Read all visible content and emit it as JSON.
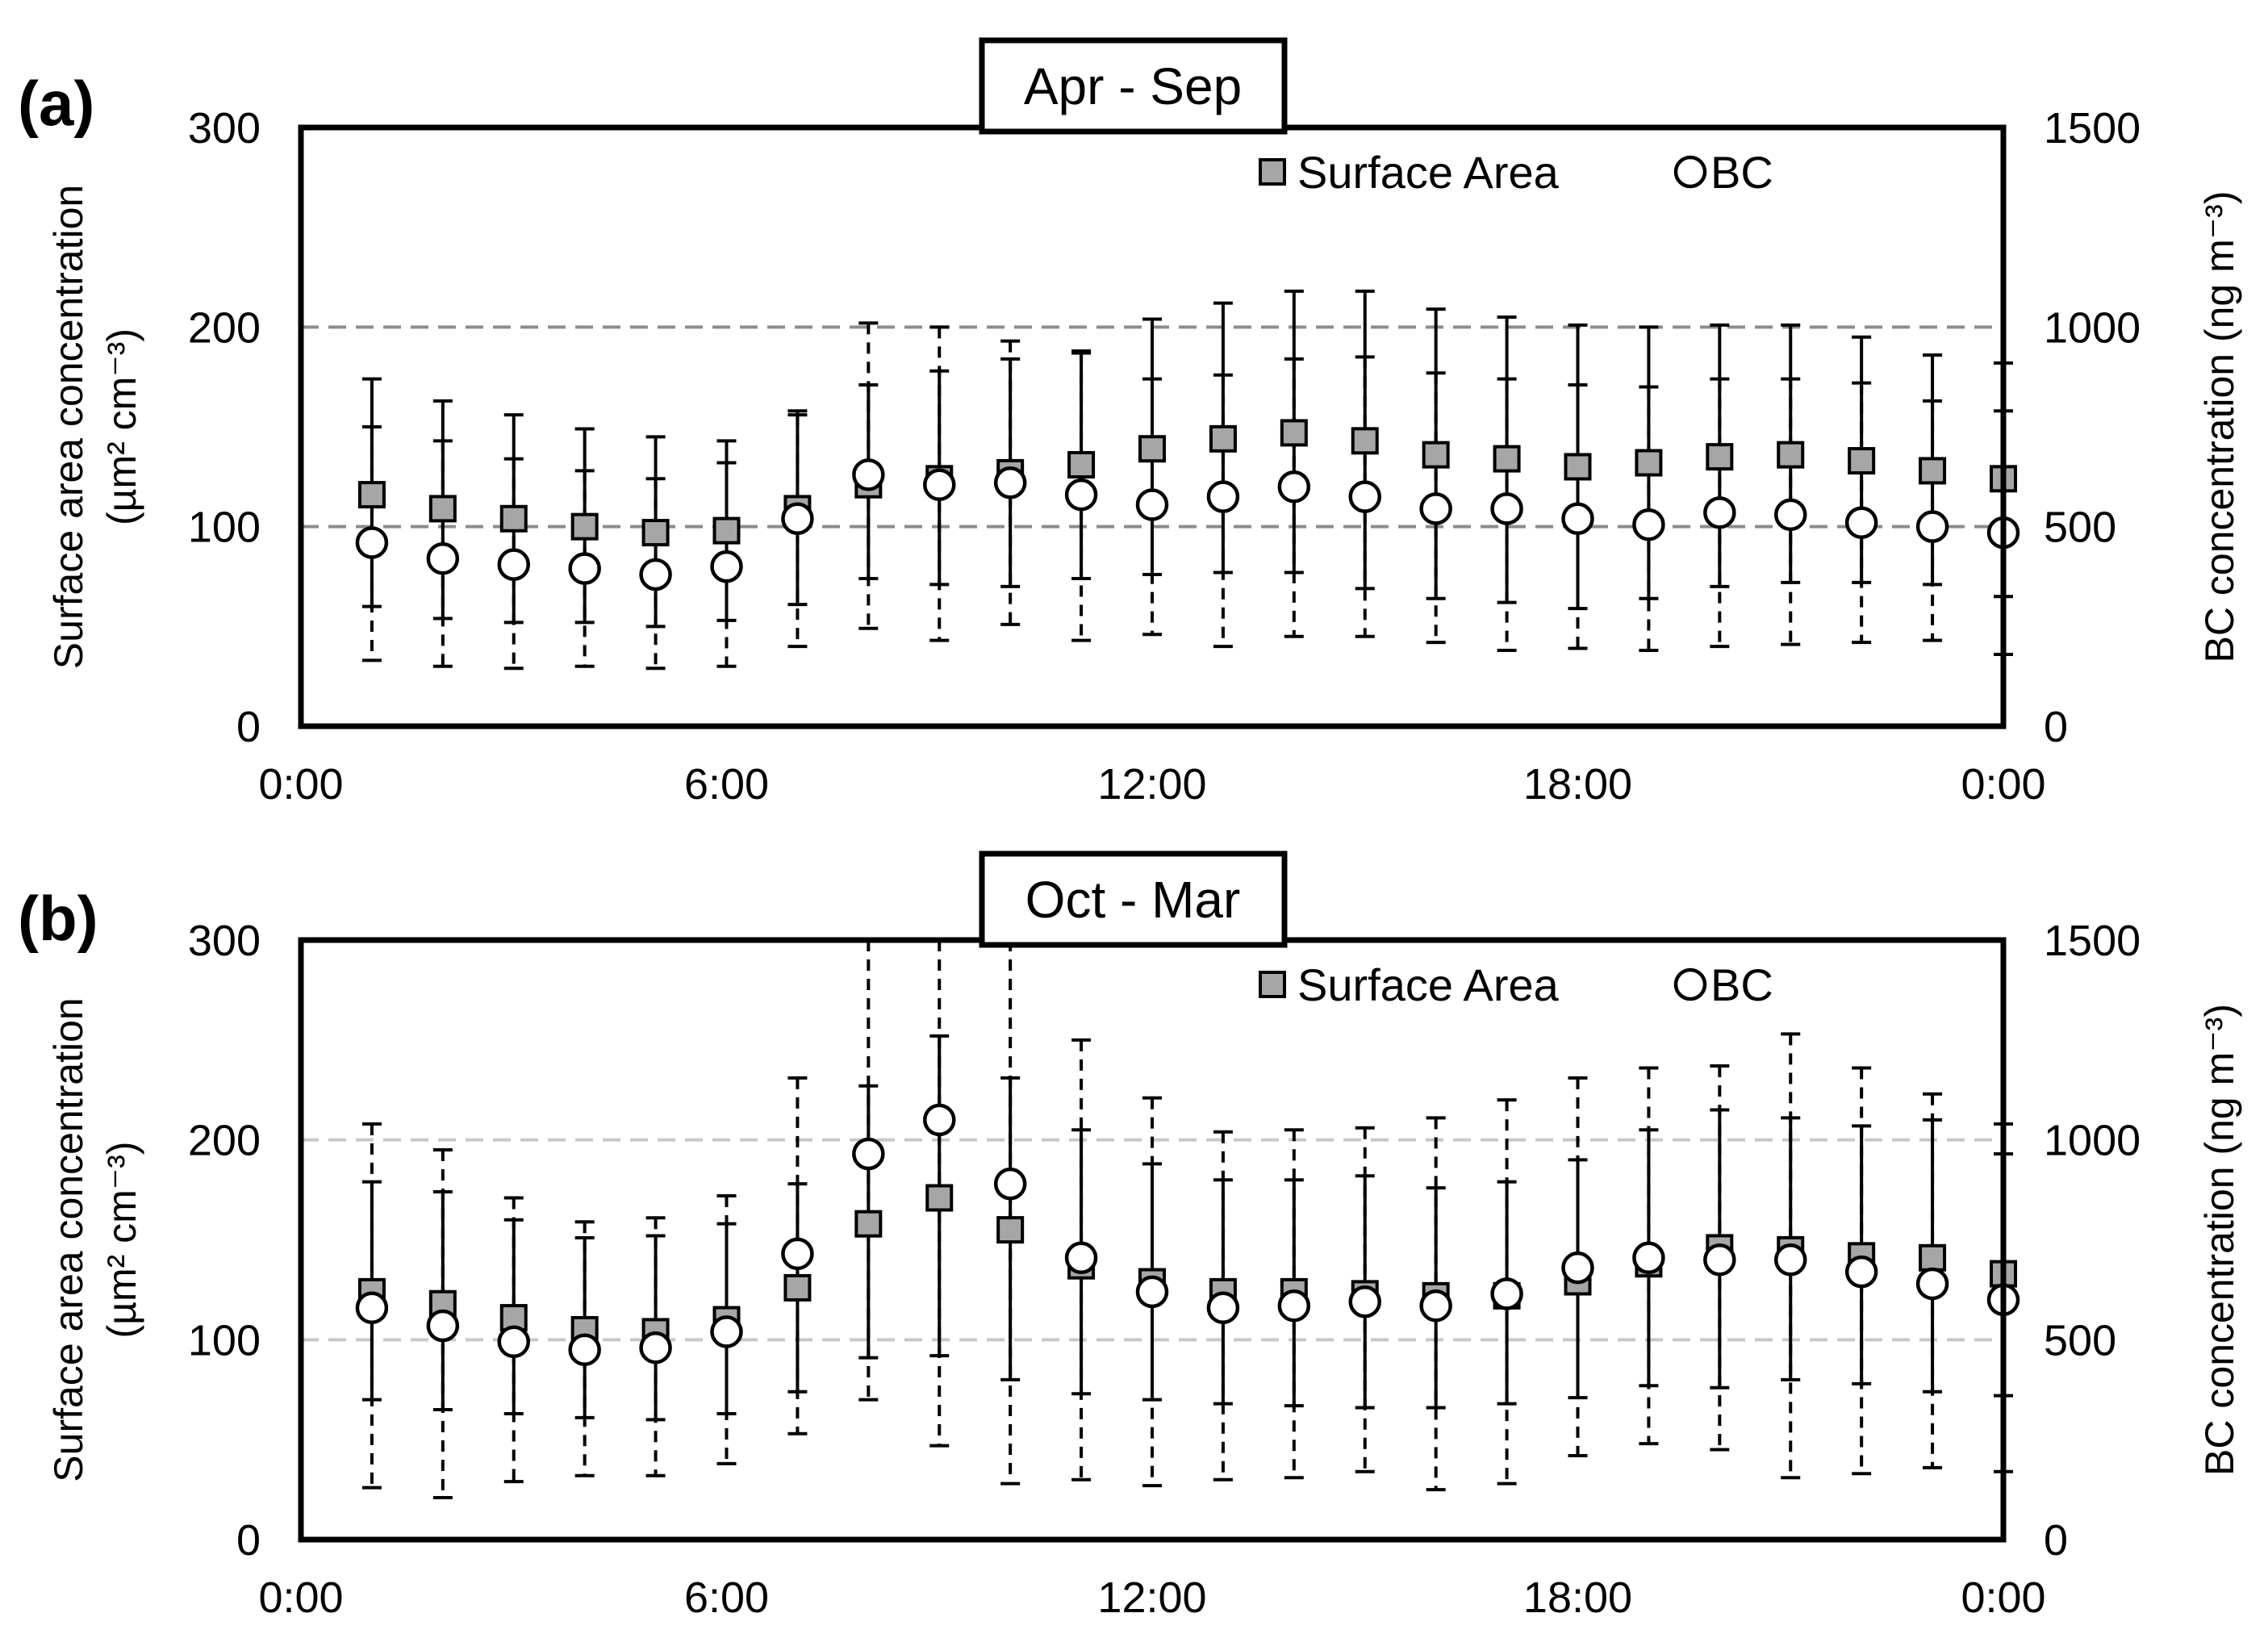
{
  "colors": {
    "axis": "#000000",
    "square_fill": "#a6a6a6",
    "circle_fill": "#ffffff",
    "grid_a": "#8c8c8c",
    "grid_b": "#c8c8c8"
  },
  "chart_data": [
    {
      "type": "scatter",
      "panel_label": "(a)",
      "title": "Apr - Sep",
      "ylabel_left_1": "Surface area concentration",
      "ylabel_left_2": "(µm² cm⁻³)",
      "ylabel_right": "BC concentration (ng m⁻³)",
      "ylim_left": [
        0,
        300
      ],
      "ylim_right": [
        0,
        1500
      ],
      "yticks_left": [
        "0",
        "100",
        "200",
        "300"
      ],
      "yticks_right": [
        "0",
        "500",
        "1000",
        "1500"
      ],
      "xlim": [
        0,
        24
      ],
      "xticks": [
        "0:00",
        "6:00",
        "12:00",
        "18:00",
        "0:00"
      ],
      "gridlines_left": [
        100,
        200
      ],
      "legend": {
        "placement": "top-right",
        "square": "Surface Area",
        "circle": "BC"
      },
      "hours": [
        1,
        2,
        3,
        4,
        5,
        6,
        7,
        8,
        9,
        10,
        11,
        12,
        13,
        14,
        15,
        16,
        17,
        18,
        19,
        20,
        21,
        22,
        23,
        24
      ],
      "series": [
        {
          "name": "Surface Area",
          "axis": "left",
          "values": [
            116,
            109,
            104,
            100,
            97,
            98,
            109,
            121,
            124,
            127,
            131,
            139,
            144,
            147,
            143,
            136,
            134,
            130,
            132,
            135,
            136,
            133,
            128,
            124
          ],
          "sd_lower": [
            60,
            54,
            52,
            52,
            50,
            53,
            61,
            74,
            71,
            70,
            74,
            76,
            77,
            77,
            69,
            64,
            62,
            59,
            64,
            70,
            72,
            72,
            71,
            65
          ],
          "sd_upper": [
            174,
            163,
            156,
            149,
            145,
            143,
            158,
            171,
            178,
            184,
            188,
            204,
            212,
            218,
            218,
            209,
            205,
            201,
            200,
            201,
            201,
            195,
            186,
            182
          ]
        },
        {
          "name": "BC",
          "axis": "right",
          "values": [
            460,
            420,
            405,
            395,
            380,
            400,
            520,
            630,
            605,
            610,
            580,
            555,
            575,
            600,
            575,
            545,
            545,
            520,
            505,
            535,
            530,
            510,
            500,
            485
          ],
          "sd_lower": [
            165,
            150,
            145,
            150,
            145,
            150,
            200,
            245,
            215,
            255,
            215,
            230,
            200,
            225,
            225,
            210,
            190,
            195,
            190,
            200,
            205,
            210,
            215,
            180
          ],
          "sd_upper": [
            750,
            715,
            670,
            640,
            620,
            660,
            780,
            1010,
            1000,
            965,
            935,
            870,
            880,
            920,
            925,
            885,
            870,
            855,
            850,
            870,
            870,
            860,
            815,
            790
          ]
        }
      ]
    },
    {
      "type": "scatter",
      "panel_label": "(b)",
      "title": "Oct - Mar",
      "ylabel_left_1": "Surface area concentration",
      "ylabel_left_2": "(µm² cm⁻³)",
      "ylabel_right": "BC concentration (ng m⁻³)",
      "ylim_left": [
        0,
        300
      ],
      "ylim_right": [
        0,
        1500
      ],
      "yticks_left": [
        "0",
        "100",
        "200",
        "300"
      ],
      "yticks_right": [
        "0",
        "500",
        "1000",
        "1500"
      ],
      "xlim": [
        0,
        24
      ],
      "xticks": [
        "0:00",
        "6:00",
        "12:00",
        "18:00",
        "0:00"
      ],
      "gridlines_left": [
        100,
        200
      ],
      "legend": {
        "placement": "top-right",
        "square": "Surface Area",
        "circle": "BC"
      },
      "hours": [
        1,
        2,
        3,
        4,
        5,
        6,
        7,
        8,
        9,
        10,
        11,
        12,
        13,
        14,
        15,
        16,
        17,
        18,
        19,
        20,
        21,
        22,
        23,
        24
      ],
      "series": [
        {
          "name": "Surface Area",
          "axis": "left",
          "values": [
            124,
            118,
            111,
            105,
            104,
            110,
            126,
            158,
            171,
            155,
            137,
            129,
            124,
            124,
            123,
            122,
            122,
            129,
            138,
            146,
            145,
            142,
            141,
            133
          ],
          "sd_lower": [
            70,
            65,
            63,
            61,
            60,
            63,
            74,
            91,
            92,
            80,
            73,
            70,
            68,
            67,
            66,
            66,
            68,
            71,
            77,
            76,
            80,
            78,
            74,
            72
          ],
          "sd_upper": [
            179,
            174,
            160,
            151,
            152,
            158,
            178,
            227,
            252,
            231,
            205,
            188,
            180,
            180,
            182,
            176,
            179,
            190,
            205,
            215,
            211,
            207,
            210,
            193
          ]
        },
        {
          "name": "BC",
          "axis": "right",
          "values": [
            580,
            535,
            495,
            475,
            480,
            520,
            715,
            965,
            1050,
            890,
            705,
            620,
            580,
            585,
            595,
            585,
            615,
            680,
            705,
            700,
            700,
            670,
            640,
            600
          ],
          "sd_lower": [
            130,
            105,
            145,
            160,
            160,
            190,
            265,
            350,
            235,
            140,
            150,
            135,
            150,
            155,
            170,
            125,
            140,
            210,
            240,
            225,
            155,
            165,
            180,
            170
          ],
          "sd_upper": [
            1040,
            975,
            855,
            795,
            805,
            860,
            1155,
            1500,
            1500,
            1500,
            1250,
            1105,
            1020,
            1025,
            1030,
            1055,
            1100,
            1155,
            1180,
            1185,
            1265,
            1180,
            1115,
            1040
          ]
        }
      ]
    }
  ]
}
